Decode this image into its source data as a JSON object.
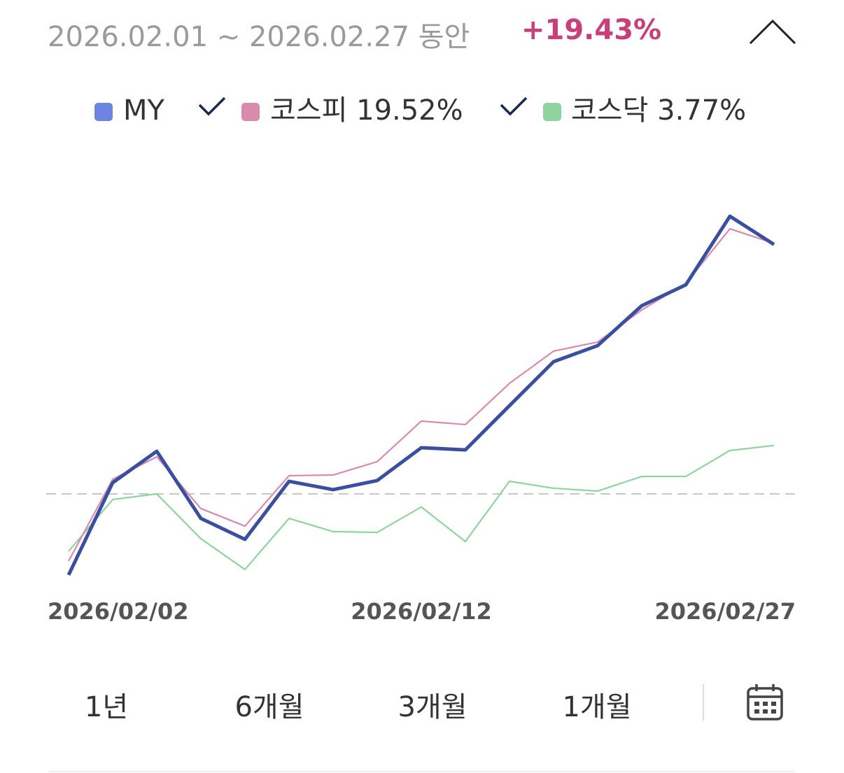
{
  "header": {
    "period": "2026.02.01 ~ 2026.02.27 동안",
    "return": "+19.43%"
  },
  "chart_data": {
    "type": "line",
    "categories": [
      "2026/02/02",
      null,
      null,
      null,
      null,
      null,
      null,
      null,
      "2026/02/12",
      null,
      null,
      null,
      null,
      null,
      null,
      null,
      "2026/02/27"
    ],
    "series": [
      {
        "name": "MY",
        "color": "#3a4fa0",
        "values": [
          -6.32,
          0.87,
          3.32,
          -1.91,
          -3.54,
          0.98,
          0.33,
          1.04,
          3.6,
          3.43,
          6.87,
          10.3,
          11.55,
          14.66,
          16.29,
          21.63,
          19.43
        ]
      },
      {
        "name": "코스피 19.52%",
        "color": "#d98aad",
        "values": [
          -5.23,
          1.14,
          2.89,
          -1.14,
          -2.51,
          1.42,
          1.47,
          2.51,
          5.67,
          5.4,
          8.61,
          11.12,
          11.83,
          14.33,
          16.4,
          20.65,
          19.52
        ]
      },
      {
        "name": "코스닥 3.77%",
        "color": "#8fd4a0",
        "values": [
          -4.47,
          -0.44,
          0,
          -3.49,
          -5.89,
          -1.91,
          -2.94,
          -3.0,
          -1.02,
          -3.71,
          0.98,
          0.44,
          0.22,
          1.36,
          1.36,
          3.38,
          3.77
        ]
      }
    ],
    "ylim": [
      -8,
      27.5
    ],
    "baseline": 0
  },
  "periods": [
    "1년",
    "6개월",
    "3개월",
    "1개월"
  ]
}
